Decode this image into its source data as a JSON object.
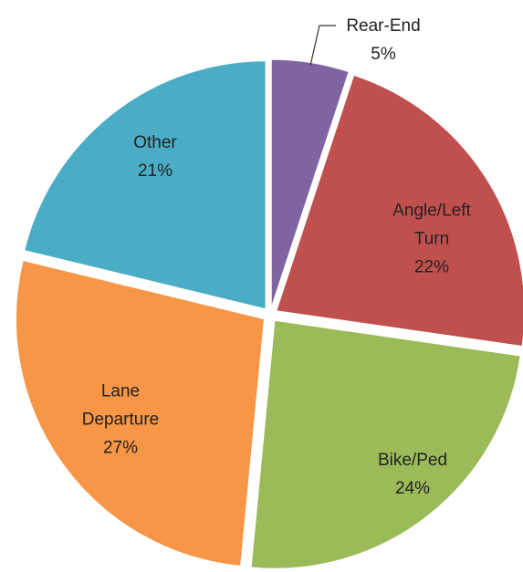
{
  "chart_data": {
    "type": "pie",
    "categories": [
      "Rear-End",
      "Angle/Left Turn",
      "Bike/Ped",
      "Lane Departure",
      "Other"
    ],
    "values": [
      5,
      22,
      24,
      27,
      21
    ],
    "value_labels": [
      "5%",
      "22%",
      "24%",
      "27%",
      "21%"
    ],
    "colors": [
      "#8064a2",
      "#c0504d",
      "#9bbb59",
      "#f79646",
      "#4bacc6"
    ]
  }
}
